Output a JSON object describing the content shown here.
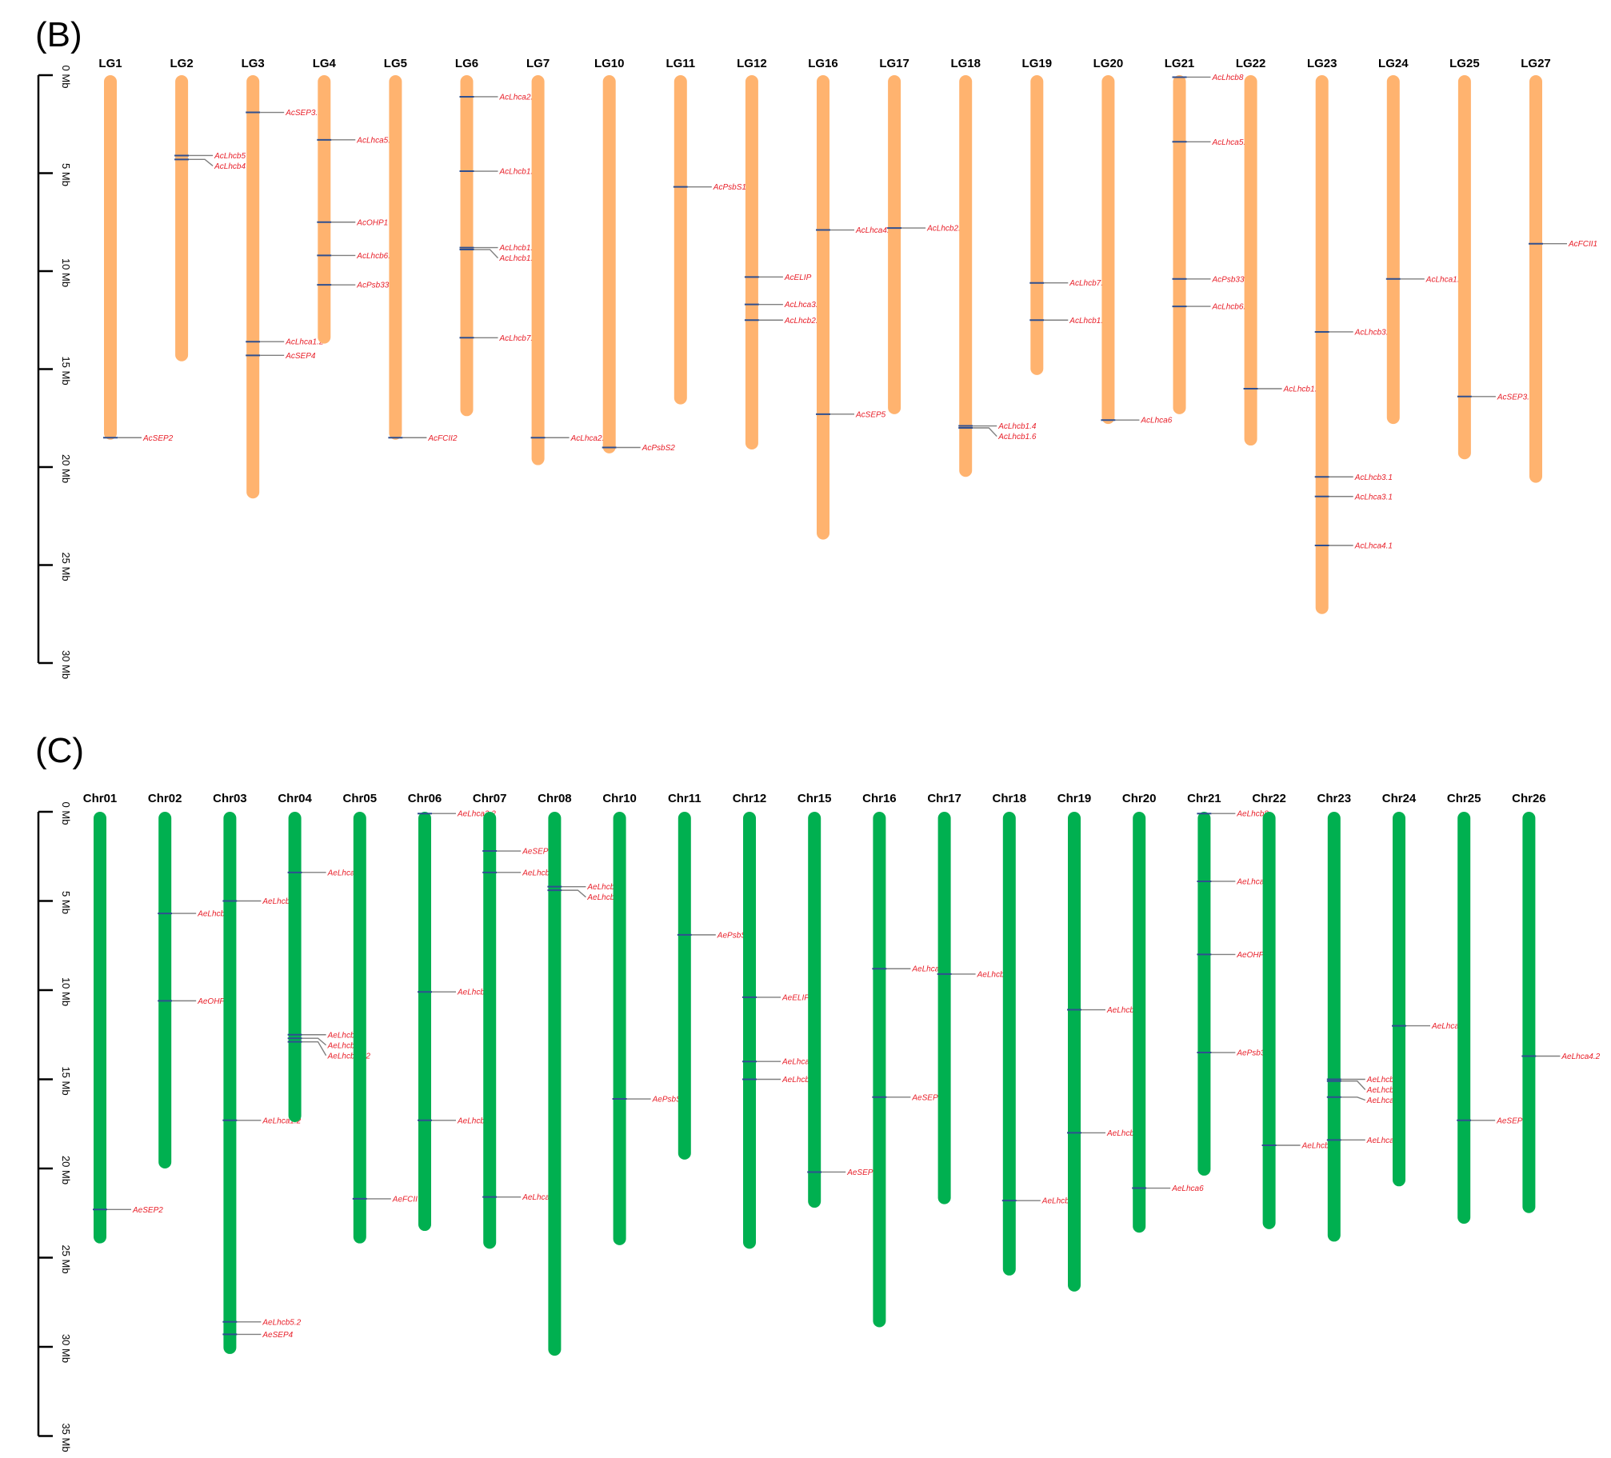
{
  "colors": {
    "panel_b_bar": "#ffb36f",
    "panel_c_bar": "#00b050",
    "gene_label": "#e8202a",
    "marker": "#2f4f8f",
    "leader": "#7f7f7f",
    "axis": "#000000"
  },
  "panels": [
    {
      "letter": "(B)",
      "bar_color": "#ffb36f",
      "axis_max_mb": 30,
      "axis_ticks": [
        {
          "mb": 0,
          "label": "0 Mb"
        },
        {
          "mb": 5,
          "label": "5 Mb"
        },
        {
          "mb": 10,
          "label": "10 Mb"
        },
        {
          "mb": 15,
          "label": "15 Mb"
        },
        {
          "mb": 20,
          "label": "20 Mb"
        },
        {
          "mb": 25,
          "label": "25 Mb"
        },
        {
          "mb": 30,
          "label": "30 Mb"
        }
      ],
      "chromosomes": [
        {
          "name": "LG1",
          "length_mb": 18.6,
          "genes": [
            {
              "name": "AcSEP2",
              "mb": 18.5
            }
          ]
        },
        {
          "name": "LG2",
          "length_mb": 14.6,
          "genes": [
            {
              "name": "AcLhcb5",
              "mb": 4.1
            },
            {
              "name": "AcLhcb4",
              "mb": 4.3
            }
          ]
        },
        {
          "name": "LG3",
          "length_mb": 21.6,
          "genes": [
            {
              "name": "AcSEP3.2",
              "mb": 1.9
            },
            {
              "name": "AcLhca1.2",
              "mb": 13.6
            },
            {
              "name": "AcSEP4",
              "mb": 14.3
            }
          ]
        },
        {
          "name": "LG4",
          "length_mb": 13.7,
          "genes": [
            {
              "name": "AcLhca5.2",
              "mb": 3.3
            },
            {
              "name": "AcOHP1",
              "mb": 7.5
            },
            {
              "name": "AcLhcb6.2",
              "mb": 9.2
            },
            {
              "name": "AcPsb33.2",
              "mb": 10.7
            }
          ]
        },
        {
          "name": "LG5",
          "length_mb": 18.6,
          "genes": [
            {
              "name": "AcFCII2",
              "mb": 18.5
            }
          ]
        },
        {
          "name": "LG6",
          "length_mb": 17.4,
          "genes": [
            {
              "name": "AcLhca2.2",
              "mb": 1.1
            },
            {
              "name": "AcLhcb1.1",
              "mb": 4.9
            },
            {
              "name": "AcLhcb1.7",
              "mb": 8.8
            },
            {
              "name": "AcLhcb1.2",
              "mb": 8.9
            },
            {
              "name": "AcLhcb7.2",
              "mb": 13.4
            }
          ]
        },
        {
          "name": "LG7",
          "length_mb": 19.9,
          "genes": [
            {
              "name": "AcLhca2.1",
              "mb": 18.5
            }
          ]
        },
        {
          "name": "LG10",
          "length_mb": 19.3,
          "genes": [
            {
              "name": "AcPsbS2",
              "mb": 19.0
            }
          ]
        },
        {
          "name": "LG11",
          "length_mb": 16.8,
          "genes": [
            {
              "name": "AcPsbS1",
              "mb": 5.7
            }
          ]
        },
        {
          "name": "LG12",
          "length_mb": 19.1,
          "genes": [
            {
              "name": "AcELIP",
              "mb": 10.3
            },
            {
              "name": "AcLhca3.2",
              "mb": 11.7
            },
            {
              "name": "AcLhcb2.2",
              "mb": 12.5
            }
          ]
        },
        {
          "name": "LG16",
          "length_mb": 23.7,
          "genes": [
            {
              "name": "AcLhca4.2",
              "mb": 7.9
            },
            {
              "name": "AcSEP5",
              "mb": 17.3
            }
          ]
        },
        {
          "name": "LG17",
          "length_mb": 17.3,
          "genes": [
            {
              "name": "AcLhcb2.1",
              "mb": 7.8
            }
          ]
        },
        {
          "name": "LG18",
          "length_mb": 20.5,
          "genes": [
            {
              "name": "AcLhcb1.4",
              "mb": 17.9
            },
            {
              "name": "AcLhcb1.6",
              "mb": 18.0
            }
          ]
        },
        {
          "name": "LG19",
          "length_mb": 15.3,
          "genes": [
            {
              "name": "AcLhcb7.1",
              "mb": 10.6
            },
            {
              "name": "AcLhcb1.5",
              "mb": 12.5
            }
          ]
        },
        {
          "name": "LG20",
          "length_mb": 17.8,
          "genes": [
            {
              "name": "AcLhca6",
              "mb": 17.6
            }
          ]
        },
        {
          "name": "LG21",
          "length_mb": 17.3,
          "genes": [
            {
              "name": "AcLhcb8",
              "mb": 0.1
            },
            {
              "name": "AcLhca5.1",
              "mb": 3.4
            },
            {
              "name": "AcPsb33.1",
              "mb": 10.4
            },
            {
              "name": "AcLhcb6.1",
              "mb": 11.8
            }
          ]
        },
        {
          "name": "LG22",
          "length_mb": 18.9,
          "genes": [
            {
              "name": "AcLhcb1.3",
              "mb": 16.0
            }
          ]
        },
        {
          "name": "LG23",
          "length_mb": 27.5,
          "genes": [
            {
              "name": "AcLhcb3.2",
              "mb": 13.1
            },
            {
              "name": "AcLhcb3.1",
              "mb": 20.5
            },
            {
              "name": "AcLhca3.1",
              "mb": 21.5
            },
            {
              "name": "AcLhca4.1",
              "mb": 24.0
            }
          ]
        },
        {
          "name": "LG24",
          "length_mb": 17.8,
          "genes": [
            {
              "name": "AcLhca1.1",
              "mb": 10.4
            }
          ]
        },
        {
          "name": "LG25",
          "length_mb": 19.6,
          "genes": [
            {
              "name": "AcSEP3.1",
              "mb": 16.4
            }
          ]
        },
        {
          "name": "LG27",
          "length_mb": 20.8,
          "genes": [
            {
              "name": "AcFCII1",
              "mb": 8.6
            }
          ]
        }
      ]
    },
    {
      "letter": "(C)",
      "bar_color": "#00b050",
      "axis_max_mb": 35,
      "axis_ticks": [
        {
          "mb": 0,
          "label": "0 Mb"
        },
        {
          "mb": 5,
          "label": "5 Mb"
        },
        {
          "mb": 10,
          "label": "10 Mb"
        },
        {
          "mb": 15,
          "label": "15 Mb"
        },
        {
          "mb": 20,
          "label": "20 Mb"
        },
        {
          "mb": 25,
          "label": "25 Mb"
        },
        {
          "mb": 30,
          "label": "30 Mb"
        },
        {
          "mb": 35,
          "label": "35 Mb"
        }
      ],
      "chromosomes": [
        {
          "name": "Chr01",
          "length_mb": 24.2,
          "genes": [
            {
              "name": "AeSEP2",
              "mb": 22.3
            }
          ]
        },
        {
          "name": "Chr02",
          "length_mb": 20.0,
          "genes": [
            {
              "name": "AeLhcb5.3",
              "mb": 5.7
            },
            {
              "name": "AeOHP1",
              "mb": 10.6
            }
          ]
        },
        {
          "name": "Chr03",
          "length_mb": 30.4,
          "genes": [
            {
              "name": "AeLhcb5.1",
              "mb": 5.0
            },
            {
              "name": "AeLhca1.2",
              "mb": 17.3
            },
            {
              "name": "AeLhcb5.2",
              "mb": 28.6
            },
            {
              "name": "AeSEP4",
              "mb": 29.3
            }
          ]
        },
        {
          "name": "Chr04",
          "length_mb": 17.4,
          "genes": [
            {
              "name": "AeLhca5.1",
              "mb": 3.4
            },
            {
              "name": "AeLhcb6.2",
              "mb": 12.5
            },
            {
              "name": "AeLhcb6.1",
              "mb": 12.7
            },
            {
              "name": "AeLhcb33.2",
              "mb": 12.9
            }
          ]
        },
        {
          "name": "Chr05",
          "length_mb": 24.2,
          "genes": [
            {
              "name": "AeFCII",
              "mb": 21.7
            }
          ]
        },
        {
          "name": "Chr06",
          "length_mb": 23.5,
          "genes": [
            {
              "name": "AeLhca2.2",
              "mb": 0.1
            },
            {
              "name": "AeLhcb1.1",
              "mb": 10.1
            },
            {
              "name": "AeLhcb7.3",
              "mb": 17.3
            }
          ]
        },
        {
          "name": "Chr07",
          "length_mb": 24.5,
          "genes": [
            {
              "name": "AeSEP1",
              "mb": 2.2
            },
            {
              "name": "AeLhcb7.2",
              "mb": 3.4
            },
            {
              "name": "AeLhca2.1",
              "mb": 21.6
            }
          ]
        },
        {
          "name": "Chr08",
          "length_mb": 30.5,
          "genes": [
            {
              "name": "AeLhcb4.2",
              "mb": 4.2
            },
            {
              "name": "AeLhcb4.1",
              "mb": 4.4
            }
          ]
        },
        {
          "name": "Chr10",
          "length_mb": 24.3,
          "genes": [
            {
              "name": "AePsbS2",
              "mb": 16.1
            }
          ]
        },
        {
          "name": "Chr11",
          "length_mb": 19.5,
          "genes": [
            {
              "name": "AePsbS1",
              "mb": 6.9
            }
          ]
        },
        {
          "name": "Chr12",
          "length_mb": 24.5,
          "genes": [
            {
              "name": "AeELIP",
              "mb": 10.4
            },
            {
              "name": "AeLhca3.2",
              "mb": 14.0
            },
            {
              "name": "AeLhcb2.2",
              "mb": 15.0
            }
          ]
        },
        {
          "name": "Chr15",
          "length_mb": 22.2,
          "genes": [
            {
              "name": "AeSEP3.2",
              "mb": 20.2
            }
          ]
        },
        {
          "name": "Chr16",
          "length_mb": 28.9,
          "genes": [
            {
              "name": "AeLhca4.1",
              "mb": 8.8
            },
            {
              "name": "AeSEP5",
              "mb": 16.0
            }
          ]
        },
        {
          "name": "Chr17",
          "length_mb": 22.0,
          "genes": [
            {
              "name": "AeLhcb2.1",
              "mb": 9.1
            }
          ]
        },
        {
          "name": "Chr18",
          "length_mb": 26.0,
          "genes": [
            {
              "name": "AeLhcb1.2",
              "mb": 21.8
            }
          ]
        },
        {
          "name": "Chr19",
          "length_mb": 26.9,
          "genes": [
            {
              "name": "AeLhcb7.1",
              "mb": 11.1
            },
            {
              "name": "AeLhcb3.3",
              "mb": 18.0
            }
          ]
        },
        {
          "name": "Chr20",
          "length_mb": 23.6,
          "genes": [
            {
              "name": "AeLhca6",
              "mb": 21.1
            }
          ]
        },
        {
          "name": "Chr21",
          "length_mb": 20.4,
          "genes": [
            {
              "name": "AeLhcb8",
              "mb": 0.1
            },
            {
              "name": "AeLhca5.2",
              "mb": 3.9
            },
            {
              "name": "AeOHP2",
              "mb": 8.0
            },
            {
              "name": "AePsb33.1",
              "mb": 13.5
            }
          ]
        },
        {
          "name": "Chr22",
          "length_mb": 23.4,
          "genes": [
            {
              "name": "AeLhcb1.3",
              "mb": 18.7
            }
          ]
        },
        {
          "name": "Chr23",
          "length_mb": 24.1,
          "genes": [
            {
              "name": "AeLhcb3.2",
              "mb": 15.0
            },
            {
              "name": "AeLhcb3.1",
              "mb": 15.1
            },
            {
              "name": "AeLhca3.1",
              "mb": 16.0
            },
            {
              "name": "AeLhca4.3",
              "mb": 18.4
            }
          ]
        },
        {
          "name": "Chr24",
          "length_mb": 21.0,
          "genes": [
            {
              "name": "AeLhca1.1",
              "mb": 12.0
            }
          ]
        },
        {
          "name": "Chr25",
          "length_mb": 23.1,
          "genes": [
            {
              "name": "AeSEP3.1",
              "mb": 17.3
            }
          ]
        },
        {
          "name": "Chr26",
          "length_mb": 22.5,
          "genes": [
            {
              "name": "AeLhca4.2",
              "mb": 13.7
            }
          ]
        }
      ]
    }
  ]
}
